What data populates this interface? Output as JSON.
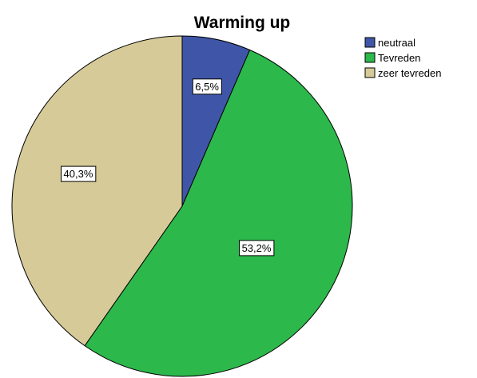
{
  "chart_data": {
    "type": "pie",
    "title": "Warming up",
    "slices": [
      {
        "name": "neutraal",
        "value": 6.5,
        "label": "6,5%",
        "color": "#3f56a8"
      },
      {
        "name": "Tevreden",
        "value": 53.2,
        "label": "53,2%",
        "color": "#2db84b"
      },
      {
        "name": "zeer tevreden",
        "value": 40.3,
        "label": "40,3%",
        "color": "#d6cb98"
      }
    ],
    "legend_placement": "top-right"
  }
}
